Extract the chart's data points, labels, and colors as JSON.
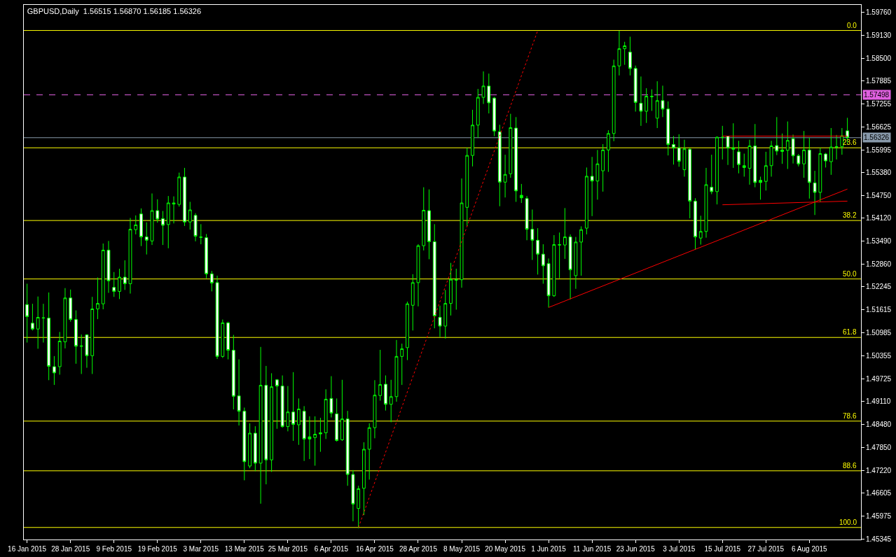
{
  "chart_data": {
    "type": "candlestick",
    "title": "GBPUSD,Daily  1.56515 1.56870 1.56185 1.56326",
    "categories": [
      "16 Jan 2015",
      null,
      null,
      null,
      null,
      null,
      null,
      null,
      "28 Jan 2015",
      null,
      null,
      null,
      null,
      null,
      null,
      null,
      "9 Feb 2015",
      null,
      null,
      null,
      null,
      null,
      null,
      null,
      "19 Feb 2015",
      null,
      null,
      null,
      null,
      null,
      null,
      null,
      "3 Mar 2015",
      null,
      null,
      null,
      null,
      null,
      null,
      null,
      "13 Mar 2015",
      null,
      null,
      null,
      null,
      null,
      null,
      null,
      "25 Mar 2015",
      null,
      null,
      null,
      null,
      null,
      null,
      null,
      "6 Apr 2015",
      null,
      null,
      null,
      null,
      null,
      null,
      null,
      "16 Apr 2015",
      null,
      null,
      null,
      null,
      null,
      null,
      null,
      "28 Apr 2015",
      null,
      null,
      null,
      null,
      null,
      null,
      null,
      "8 May 2015",
      null,
      null,
      null,
      null,
      null,
      null,
      null,
      "20 May 2015",
      null,
      null,
      null,
      null,
      null,
      null,
      null,
      "1 Jun 2015",
      null,
      null,
      null,
      null,
      null,
      null,
      null,
      "11 Jun 2015",
      null,
      null,
      null,
      null,
      null,
      null,
      null,
      "23 Jun 2015",
      null,
      null,
      null,
      null,
      null,
      null,
      null,
      "3 Jul 2015",
      null,
      null,
      null,
      null,
      null,
      null,
      null,
      "15 Jul 2015",
      null,
      null,
      null,
      null,
      null,
      null,
      null,
      "27 Jul 2015",
      null,
      null,
      null,
      null,
      null,
      null,
      null,
      "6 Aug 2015",
      null,
      null,
      null,
      null,
      null,
      null,
      null
    ],
    "color": "#00ff00",
    "colors": [
      "#ffffff",
      "#ffffff",
      "#000000",
      "#00ff00",
      "#ffffff",
      "#ffffff",
      "#000000",
      "#000000",
      "#ffffff",
      "#ffffff",
      "#00ff00",
      "#ffffff",
      "#000000",
      "#000000",
      "#000000",
      "#ffffff",
      "#ffffff",
      "#000000",
      "#ffffff",
      "#000000",
      "#000000",
      "#ffffff",
      "#ffffff",
      "#000000",
      "#ffffff",
      "#ffffff",
      "#000000",
      "#00ff00",
      "#000000",
      "#ffffff",
      "#000000",
      "#ffffff",
      "#00ff00",
      "#ffffff",
      "#ffffff",
      "#ffffff",
      "#000000",
      "#ffffff",
      "#ffffff",
      "#ffffff",
      "#ffffff",
      "#000000",
      "#ffffff",
      "#000000",
      "#ffffff",
      "#000000",
      "#ffffff",
      "#ffffff",
      "#000000",
      "#ffffff",
      "#000000",
      "#ffffff",
      "#00ff00",
      "#000000",
      "#00ff00",
      "#000000",
      "#ffffff",
      "#ffffff",
      "#000000",
      "#ffffff",
      "#ffffff",
      "#000000",
      "#000000",
      "#000000",
      "#000000",
      "#000000",
      "#ffffff",
      "#000000",
      "#000000",
      "#000000",
      "#000000",
      "#000000",
      "#000000",
      "#000000",
      "#ffffff",
      "#ffffff",
      "#ffffff",
      "#000000",
      "#000000",
      "#00ff00",
      "#000000",
      "#000000",
      "#000000",
      "#000000",
      "#000000",
      "#ffffff",
      "#ffffff",
      "#ffffff",
      "#000000",
      "#000000",
      "#ffffff",
      "#00ff00",
      "#ffffff",
      "#ffffff",
      "#ffffff",
      "#ffffff",
      "#ffffff",
      "#000000",
      "#00ff00",
      "#000000",
      "#ffffff",
      "#000000",
      "#000000",
      "#000000",
      "#ffffff",
      "#000000",
      "#000000",
      "#000000",
      "#000000",
      "#000000",
      "#000000",
      "#ffffff",
      "#ffffff",
      "#ffffff",
      "#000000",
      "#00ff00",
      "#000000",
      "#ffffff",
      "#ffffff",
      "#ffffff",
      "#ffffff",
      "#000000",
      "#ffffff",
      "#ffffff",
      "#000000",
      "#000000",
      "#ffffff",
      "#000000",
      "#00ff00",
      "#ffffff",
      "#00ff00",
      "#ffffff",
      "#00ff00",
      "#000000",
      "#ffffff",
      "#00ff00",
      "#000000",
      "#000000",
      "#ffffff",
      "#00ff00",
      "#000000",
      "#ffffff",
      "#ffffff",
      "#000000",
      "#ffffff",
      "#ffffff",
      "#000000",
      "#ffffff",
      "#000000",
      "#00ff00",
      "#000000",
      "#ffffff"
    ],
    "ohlc": [
      [
        1.5176,
        1.5233,
        1.5072,
        1.5143
      ],
      [
        1.5125,
        1.5178,
        1.5105,
        1.5109
      ],
      [
        1.5109,
        1.5198,
        1.5055,
        1.5141
      ],
      [
        1.514,
        1.5178,
        1.5072,
        1.5139
      ],
      [
        1.5139,
        1.5209,
        1.4969,
        1.5007
      ],
      [
        1.5006,
        1.5035,
        1.4956,
        1.4989
      ],
      [
        1.5006,
        1.5101,
        1.4984,
        1.5076
      ],
      [
        1.5074,
        1.5221,
        1.5056,
        1.5194
      ],
      [
        1.5194,
        1.5217,
        1.5129,
        1.5135
      ],
      [
        1.5135,
        1.516,
        1.5014,
        1.5062
      ],
      [
        1.5063,
        1.5094,
        1.4986,
        1.5062
      ],
      [
        1.5093,
        1.5095,
        1.5003,
        1.5036
      ],
      [
        1.5036,
        1.5197,
        1.4986,
        1.5164
      ],
      [
        1.5164,
        1.525,
        1.5136,
        1.5179
      ],
      [
        1.5178,
        1.5343,
        1.5163,
        1.5325
      ],
      [
        1.5325,
        1.535,
        1.5208,
        1.5241
      ],
      [
        1.5223,
        1.5265,
        1.5197,
        1.5212
      ],
      [
        1.5212,
        1.5274,
        1.5191,
        1.5251
      ],
      [
        1.5251,
        1.5297,
        1.5216,
        1.5233
      ],
      [
        1.5233,
        1.5413,
        1.5206,
        1.5382
      ],
      [
        1.5381,
        1.542,
        1.5368,
        1.5394
      ],
      [
        1.5424,
        1.5439,
        1.5336,
        1.5361
      ],
      [
        1.5361,
        1.5401,
        1.5313,
        1.5352
      ],
      [
        1.535,
        1.548,
        1.5339,
        1.5433
      ],
      [
        1.5433,
        1.5464,
        1.54,
        1.541
      ],
      [
        1.5411,
        1.5432,
        1.5339,
        1.5393
      ],
      [
        1.5395,
        1.5473,
        1.533,
        1.5454
      ],
      [
        1.5454,
        1.5472,
        1.5398,
        1.5451
      ],
      [
        1.545,
        1.5537,
        1.5444,
        1.5525
      ],
      [
        1.5525,
        1.555,
        1.5391,
        1.5402
      ],
      [
        1.5402,
        1.5457,
        1.5381,
        1.5435
      ],
      [
        1.542,
        1.5426,
        1.5349,
        1.5363
      ],
      [
        1.5361,
        1.5396,
        1.5341,
        1.536
      ],
      [
        1.5359,
        1.5369,
        1.5248,
        1.526
      ],
      [
        1.526,
        1.5268,
        1.5212,
        1.5235
      ],
      [
        1.5236,
        1.5255,
        1.5027,
        1.5034
      ],
      [
        1.5034,
        1.5135,
        1.503,
        1.5126
      ],
      [
        1.5126,
        1.5129,
        1.5026,
        1.5051
      ],
      [
        1.5051,
        1.5093,
        1.4889,
        1.4925
      ],
      [
        1.4926,
        1.5026,
        1.4845,
        1.4884
      ],
      [
        1.4884,
        1.4894,
        1.4695,
        1.4746
      ],
      [
        1.4734,
        1.4851,
        1.4728,
        1.4824
      ],
      [
        1.4824,
        1.4843,
        1.472,
        1.4742
      ],
      [
        1.4742,
        1.506,
        1.4631,
        1.4955
      ],
      [
        1.4955,
        1.5008,
        1.4684,
        1.4751
      ],
      [
        1.4751,
        1.4988,
        1.4718,
        1.4951
      ],
      [
        1.497,
        1.4972,
        1.4836,
        1.4953
      ],
      [
        1.4953,
        1.4982,
        1.4839,
        1.4842
      ],
      [
        1.4842,
        1.4953,
        1.4829,
        1.4882
      ],
      [
        1.4882,
        1.4991,
        1.4803,
        1.4848
      ],
      [
        1.4847,
        1.4919,
        1.4792,
        1.489
      ],
      [
        1.4884,
        1.4898,
        1.4748,
        1.4808
      ],
      [
        1.4814,
        1.487,
        1.4753,
        1.4808
      ],
      [
        1.4812,
        1.487,
        1.4735,
        1.4821
      ],
      [
        1.4825,
        1.4866,
        1.4773,
        1.4822
      ],
      [
        1.4825,
        1.4944,
        1.4808,
        1.4917
      ],
      [
        1.4919,
        1.498,
        1.4867,
        1.4879
      ],
      [
        1.4877,
        1.4919,
        1.4801,
        1.4804
      ],
      [
        1.4806,
        1.497,
        1.4803,
        1.4863
      ],
      [
        1.4863,
        1.4885,
        1.468,
        1.4711
      ],
      [
        1.4711,
        1.4723,
        1.4583,
        1.463
      ],
      [
        1.4618,
        1.468,
        1.4564,
        1.4672
      ],
      [
        1.4673,
        1.4799,
        1.46,
        1.478
      ],
      [
        1.478,
        1.4851,
        1.4697,
        1.4839
      ],
      [
        1.4839,
        1.4969,
        1.481,
        1.4928
      ],
      [
        1.4927,
        1.5052,
        1.4913,
        1.4957
      ],
      [
        1.4958,
        1.4982,
        1.4886,
        1.4903
      ],
      [
        1.4903,
        1.497,
        1.4854,
        1.4924
      ],
      [
        1.4924,
        1.5079,
        1.491,
        1.5034
      ],
      [
        1.5034,
        1.5069,
        1.4956,
        1.5055
      ],
      [
        1.5058,
        1.5184,
        1.5024,
        1.5178
      ],
      [
        1.5174,
        1.5259,
        1.5105,
        1.5236
      ],
      [
        1.5236,
        1.5341,
        1.5171,
        1.5337
      ],
      [
        1.5337,
        1.5497,
        1.5324,
        1.5434
      ],
      [
        1.5433,
        1.5491,
        1.53,
        1.5348
      ],
      [
        1.5348,
        1.5396,
        1.5111,
        1.5145
      ],
      [
        1.5141,
        1.5173,
        1.5087,
        1.5117
      ],
      [
        1.5117,
        1.5216,
        1.5083,
        1.5179
      ],
      [
        1.5179,
        1.529,
        1.5146,
        1.5245
      ],
      [
        1.5244,
        1.5274,
        1.5162,
        1.5243
      ],
      [
        1.5244,
        1.5521,
        1.5222,
        1.5454
      ],
      [
        1.5442,
        1.5605,
        1.5391,
        1.5584
      ],
      [
        1.5584,
        1.5709,
        1.5554,
        1.5667
      ],
      [
        1.5667,
        1.5766,
        1.5632,
        1.5743
      ],
      [
        1.5743,
        1.5814,
        1.5725,
        1.5774
      ],
      [
        1.5774,
        1.5808,
        1.5699,
        1.5728
      ],
      [
        1.5741,
        1.5744,
        1.5637,
        1.5651
      ],
      [
        1.5649,
        1.5668,
        1.5445,
        1.5511
      ],
      [
        1.5511,
        1.5586,
        1.5469,
        1.5532
      ],
      [
        1.5534,
        1.5698,
        1.5523,
        1.566
      ],
      [
        1.5659,
        1.5689,
        1.5457,
        1.5487
      ],
      [
        1.5475,
        1.5506,
        1.5454,
        1.5468
      ],
      [
        1.5466,
        1.5473,
        1.5352,
        1.5382
      ],
      [
        1.5382,
        1.5436,
        1.5298,
        1.5352
      ],
      [
        1.5352,
        1.5385,
        1.5258,
        1.5314
      ],
      [
        1.5314,
        1.5341,
        1.5233,
        1.5282
      ],
      [
        1.5288,
        1.5302,
        1.5168,
        1.52
      ],
      [
        1.52,
        1.5366,
        1.5197,
        1.534
      ],
      [
        1.534,
        1.5373,
        1.5248,
        1.5339
      ],
      [
        1.5339,
        1.544,
        1.5301,
        1.5361
      ],
      [
        1.5361,
        1.5368,
        1.519,
        1.5271
      ],
      [
        1.5255,
        1.5361,
        1.5219,
        1.5347
      ],
      [
        1.5347,
        1.539,
        1.5255,
        1.5381
      ],
      [
        1.5385,
        1.5551,
        1.5368,
        1.5527
      ],
      [
        1.5527,
        1.558,
        1.5418,
        1.5514
      ],
      [
        1.5514,
        1.5599,
        1.5463,
        1.5561
      ],
      [
        1.5542,
        1.5615,
        1.5485,
        1.5599
      ],
      [
        1.5599,
        1.5653,
        1.5539,
        1.5644
      ],
      [
        1.5644,
        1.5846,
        1.5623,
        1.5829
      ],
      [
        1.5829,
        1.5925,
        1.5803,
        1.5876
      ],
      [
        1.5876,
        1.5895,
        1.5832,
        1.5884
      ],
      [
        1.5867,
        1.5909,
        1.5803,
        1.5822
      ],
      [
        1.5822,
        1.583,
        1.5704,
        1.5729
      ],
      [
        1.5727,
        1.58,
        1.5665,
        1.5705
      ],
      [
        1.5705,
        1.5768,
        1.5673,
        1.5746
      ],
      [
        1.5746,
        1.5765,
        1.5706,
        1.5745
      ],
      [
        1.5686,
        1.5787,
        1.5659,
        1.5734
      ],
      [
        1.5734,
        1.5775,
        1.5689,
        1.5711
      ],
      [
        1.5711,
        1.5732,
        1.5584,
        1.5614
      ],
      [
        1.5614,
        1.5637,
        1.5559,
        1.5605
      ],
      [
        1.5605,
        1.5642,
        1.5553,
        1.5568
      ],
      [
        1.5545,
        1.5627,
        1.5526,
        1.5602
      ],
      [
        1.5601,
        1.5605,
        1.5412,
        1.5459
      ],
      [
        1.5459,
        1.5467,
        1.5326,
        1.5361
      ],
      [
        1.5358,
        1.5419,
        1.534,
        1.5376
      ],
      [
        1.5376,
        1.555,
        1.5359,
        1.5504
      ],
      [
        1.5497,
        1.5586,
        1.5478,
        1.5485
      ],
      [
        1.5485,
        1.5636,
        1.545,
        1.5634
      ],
      [
        1.5634,
        1.5665,
        1.5573,
        1.5633
      ],
      [
        1.5637,
        1.5638,
        1.5558,
        1.5605
      ],
      [
        1.5605,
        1.5672,
        1.555,
        1.5601
      ],
      [
        1.5594,
        1.5624,
        1.5535,
        1.5559
      ],
      [
        1.5556,
        1.5589,
        1.5526,
        1.5551
      ],
      [
        1.5549,
        1.5627,
        1.5504,
        1.561
      ],
      [
        1.561,
        1.567,
        1.5497,
        1.551
      ],
      [
        1.5516,
        1.5526,
        1.5463,
        1.551
      ],
      [
        1.5513,
        1.5594,
        1.5488,
        1.5556
      ],
      [
        1.5556,
        1.5624,
        1.5526,
        1.561
      ],
      [
        1.5611,
        1.5689,
        1.5585,
        1.5596
      ],
      [
        1.5599,
        1.5644,
        1.5561,
        1.5595
      ],
      [
        1.5598,
        1.5677,
        1.5547,
        1.5625
      ],
      [
        1.563,
        1.5641,
        1.5562,
        1.5583
      ],
      [
        1.5583,
        1.5588,
        1.5554,
        1.5561
      ],
      [
        1.5561,
        1.5651,
        1.5523,
        1.5599
      ],
      [
        1.5599,
        1.5632,
        1.5466,
        1.551
      ],
      [
        1.5509,
        1.5542,
        1.5421,
        1.5483
      ],
      [
        1.5483,
        1.5605,
        1.5456,
        1.5589
      ],
      [
        1.5588,
        1.5591,
        1.5551,
        1.5569
      ],
      [
        1.5567,
        1.5659,
        1.5531,
        1.5607
      ],
      [
        1.5608,
        1.564,
        1.5573,
        1.5607
      ],
      [
        1.5608,
        1.5659,
        1.5586,
        1.5638
      ],
      [
        1.56515,
        1.5687,
        1.56185,
        1.56326
      ]
    ],
    "series": [
      {
        "type": "line",
        "color": "#ff0000",
        "line_style": "dotted",
        "values": [
          null,
          null,
          null,
          null,
          null,
          null,
          null,
          null,
          null,
          null,
          null,
          null,
          null,
          null,
          null,
          null,
          null,
          null,
          null,
          null,
          null,
          null,
          null,
          null,
          null,
          null,
          null,
          null,
          null,
          null,
          null,
          null,
          null,
          null,
          null,
          null,
          null,
          null,
          null,
          null,
          null,
          null,
          null,
          null,
          null,
          null,
          null,
          null,
          null,
          null,
          null,
          null,
          null,
          null,
          null,
          null,
          null,
          null,
          null,
          null,
          null,
          1.4566,
          null,
          null,
          null,
          null,
          null,
          null,
          null,
          null,
          null,
          null,
          null,
          null,
          null,
          null,
          null,
          null,
          null,
          null,
          null,
          null,
          null,
          null,
          null,
          null,
          null,
          null,
          null,
          null,
          null,
          null,
          null,
          null,
          1.5926,
          null,
          null,
          null,
          null,
          null,
          null,
          null,
          null,
          null,
          null,
          null,
          null,
          null,
          null,
          null,
          null,
          null,
          null,
          null,
          null,
          null,
          null,
          null,
          null,
          null,
          null,
          null,
          null,
          null,
          null,
          null,
          null,
          null,
          null,
          null,
          null,
          null,
          null,
          null,
          null,
          null,
          null,
          null,
          null,
          null,
          null,
          null,
          null,
          null,
          null,
          null,
          null,
          null,
          null,
          null,
          null,
          null
        ]
      },
      {
        "type": "line",
        "color": "#ff0000",
        "line_style": "solid",
        "values": [
          null,
          null,
          null,
          null,
          null,
          null,
          null,
          null,
          null,
          null,
          null,
          null,
          null,
          null,
          null,
          null,
          null,
          null,
          null,
          null,
          null,
          null,
          null,
          null,
          null,
          null,
          null,
          null,
          null,
          null,
          null,
          null,
          null,
          null,
          null,
          null,
          null,
          null,
          null,
          null,
          null,
          null,
          null,
          null,
          null,
          null,
          null,
          null,
          null,
          null,
          null,
          null,
          null,
          null,
          null,
          null,
          null,
          null,
          null,
          null,
          null,
          null,
          null,
          null,
          null,
          null,
          null,
          null,
          null,
          null,
          null,
          null,
          null,
          null,
          null,
          null,
          null,
          null,
          null,
          null,
          null,
          null,
          null,
          null,
          null,
          null,
          null,
          null,
          null,
          null,
          null,
          null,
          null,
          null,
          null,
          null,
          1.5168,
          null,
          null,
          null,
          null,
          null,
          null,
          null,
          null,
          null,
          null,
          null,
          null,
          null,
          null,
          null,
          null,
          null,
          null,
          null,
          null,
          null,
          null,
          null,
          null,
          null,
          null,
          null,
          null,
          null,
          null,
          null,
          null,
          null,
          null,
          null,
          null,
          null,
          null,
          null,
          null,
          null,
          null,
          null,
          null,
          null,
          null,
          null,
          null,
          null,
          null,
          null,
          null,
          null,
          null,
          1.5492
        ]
      },
      {
        "type": "line",
        "color": "#ff0000",
        "line_style": "solid",
        "values": [
          null,
          null,
          null,
          null,
          null,
          null,
          null,
          null,
          null,
          null,
          null,
          null,
          null,
          null,
          null,
          null,
          null,
          null,
          null,
          null,
          null,
          null,
          null,
          null,
          null,
          null,
          null,
          null,
          null,
          null,
          null,
          null,
          null,
          null,
          null,
          null,
          null,
          null,
          null,
          null,
          null,
          null,
          null,
          null,
          null,
          null,
          null,
          null,
          null,
          null,
          null,
          null,
          null,
          null,
          null,
          null,
          null,
          null,
          null,
          null,
          null,
          null,
          null,
          null,
          null,
          null,
          null,
          null,
          null,
          null,
          null,
          null,
          null,
          null,
          null,
          null,
          null,
          null,
          null,
          null,
          null,
          null,
          null,
          null,
          null,
          null,
          null,
          null,
          null,
          null,
          null,
          null,
          null,
          null,
          null,
          null,
          null,
          null,
          null,
          null,
          null,
          null,
          null,
          null,
          null,
          null,
          null,
          null,
          null,
          null,
          null,
          null,
          null,
          null,
          null,
          null,
          null,
          null,
          null,
          null,
          null,
          null,
          null,
          null,
          null,
          null,
          null,
          null,
          1.5449,
          null,
          null,
          null,
          null,
          null,
          null,
          null,
          null,
          null,
          null,
          null,
          null,
          null,
          null,
          null,
          null,
          null,
          null,
          null,
          null,
          null,
          null,
          1.5459
        ]
      },
      {
        "type": "line",
        "color": "#ff0000",
        "line_style": "solid",
        "values": [
          null,
          null,
          null,
          null,
          null,
          null,
          null,
          null,
          null,
          null,
          null,
          null,
          null,
          null,
          null,
          null,
          null,
          null,
          null,
          null,
          null,
          null,
          null,
          null,
          null,
          null,
          null,
          null,
          null,
          null,
          null,
          null,
          null,
          null,
          null,
          null,
          null,
          null,
          null,
          null,
          null,
          null,
          null,
          null,
          null,
          null,
          null,
          null,
          null,
          null,
          null,
          null,
          null,
          null,
          null,
          null,
          null,
          null,
          null,
          null,
          null,
          null,
          null,
          null,
          null,
          null,
          null,
          null,
          null,
          null,
          null,
          null,
          null,
          null,
          null,
          null,
          null,
          null,
          null,
          null,
          null,
          null,
          null,
          null,
          null,
          null,
          null,
          null,
          null,
          null,
          null,
          null,
          null,
          null,
          null,
          null,
          null,
          null,
          null,
          null,
          null,
          null,
          null,
          null,
          null,
          null,
          null,
          null,
          null,
          null,
          null,
          null,
          null,
          null,
          null,
          null,
          null,
          null,
          null,
          null,
          null,
          null,
          null,
          null,
          null,
          null,
          null,
          null,
          1.5637,
          null,
          null,
          null,
          null,
          null,
          null,
          null,
          null,
          null,
          null,
          null,
          null,
          null,
          null,
          null,
          null,
          null,
          null,
          null,
          null,
          null,
          null,
          1.5637
        ]
      }
    ],
    "ref_lines": [
      {
        "axis": "y",
        "value": 1.5926,
        "color": "#ffff00"
      },
      {
        "axis": "y",
        "value": 1.5605,
        "color": "#ffff00"
      },
      {
        "axis": "y",
        "value": 1.5406,
        "color": "#ffff00"
      },
      {
        "axis": "y",
        "value": 1.5246,
        "color": "#ffff00"
      },
      {
        "axis": "y",
        "value": 1.5086,
        "color": "#ffff00"
      },
      {
        "axis": "y",
        "value": 1.4857,
        "color": "#ffff00"
      },
      {
        "axis": "y",
        "value": 1.4721,
        "color": "#ffff00"
      },
      {
        "axis": "y",
        "value": 1.4566,
        "color": "#ffff00"
      },
      {
        "axis": "y",
        "value": 1.57498,
        "label": "1.57498",
        "color": "#e060e0",
        "line_style": "dashed"
      },
      {
        "axis": "y",
        "value": 1.56326,
        "label": "1.56326",
        "color": "#8899aa"
      }
    ],
    "annotations": [
      {
        "text": "0.0",
        "y": 1.5926
      },
      {
        "text": "23.6",
        "y": 1.5605
      },
      {
        "text": "38.2",
        "y": 1.5406
      },
      {
        "text": "50.0",
        "y": 1.5246
      },
      {
        "text": "61.8",
        "y": 1.5086
      },
      {
        "text": "78.6",
        "y": 1.4857
      },
      {
        "text": "88.6",
        "y": 1.4721
      },
      {
        "text": "100.0",
        "y": 1.4566
      }
    ],
    "ylim": [
      1.4533,
      1.5996
    ],
    "yticks": [
      {
        "value": 1.5976,
        "label": "1.59760"
      },
      {
        "value": 1.5913,
        "label": "1.59130"
      },
      {
        "value": 1.585,
        "label": "1.58500"
      },
      {
        "value": 1.57885,
        "label": "1.57885"
      },
      {
        "value": 1.57255,
        "label": "1.57255"
      },
      {
        "value": 1.56625,
        "label": "1.56625"
      },
      {
        "value": 1.55995,
        "label": "1.55995"
      },
      {
        "value": 1.5538,
        "label": "1.55380"
      },
      {
        "value": 1.5475,
        "label": "1.54750"
      },
      {
        "value": 1.5412,
        "label": "1.54120"
      },
      {
        "value": 1.5349,
        "label": "1.53490"
      },
      {
        "value": 1.5286,
        "label": "1.52860"
      },
      {
        "value": 1.52245,
        "label": "1.52245"
      },
      {
        "value": 1.51615,
        "label": "1.51615"
      },
      {
        "value": 1.50985,
        "label": "1.50985"
      },
      {
        "value": 1.50355,
        "label": "1.50355"
      },
      {
        "value": 1.49725,
        "label": "1.49725"
      },
      {
        "value": 1.4911,
        "label": "1.49110"
      },
      {
        "value": 1.4848,
        "label": "1.48480"
      },
      {
        "value": 1.4785,
        "label": "1.47850"
      },
      {
        "value": 1.4722,
        "label": "1.47220"
      },
      {
        "value": 1.46605,
        "label": "1.46605"
      },
      {
        "value": 1.45975,
        "label": "1.45975"
      },
      {
        "value": 1.45345,
        "label": "1.45345"
      }
    ]
  }
}
